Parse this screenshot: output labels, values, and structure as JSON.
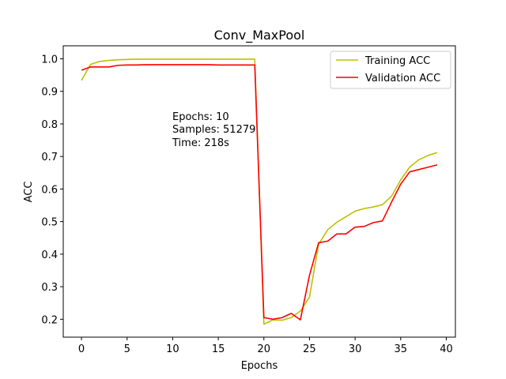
{
  "chart_data": {
    "type": "line",
    "title": "Conv_MaxPool",
    "xlabel": "Epochs",
    "ylabel": "ACC",
    "xlim": [
      -2,
      41
    ],
    "ylim": [
      0.145,
      1.04
    ],
    "xticks": [
      0,
      5,
      10,
      15,
      20,
      25,
      30,
      35,
      40
    ],
    "yticks": [
      0.2,
      0.3,
      0.4,
      0.5,
      0.6,
      0.7,
      0.8,
      0.9,
      1.0
    ],
    "ytick_labels": [
      "0.2",
      "0.3",
      "0.4",
      "0.5",
      "0.6",
      "0.7",
      "0.8",
      "0.9",
      "1.0"
    ],
    "grid": false,
    "legend_position": "top-right",
    "x": [
      0,
      1,
      2,
      3,
      4,
      5,
      6,
      7,
      8,
      9,
      10,
      11,
      12,
      13,
      14,
      15,
      16,
      17,
      18,
      19,
      20,
      21,
      22,
      23,
      24,
      25,
      26,
      27,
      28,
      29,
      30,
      31,
      32,
      33,
      34,
      35,
      36,
      37,
      38,
      39
    ],
    "series": [
      {
        "name": "Training ACC",
        "color": "#bfbf00",
        "values": [
          0.934,
          0.983,
          0.992,
          0.995,
          0.997,
          0.998,
          0.999,
          0.999,
          0.999,
          0.999,
          0.999,
          0.999,
          0.999,
          0.999,
          0.999,
          0.999,
          0.999,
          0.999,
          0.999,
          0.999,
          0.185,
          0.198,
          0.197,
          0.205,
          0.225,
          0.268,
          0.43,
          0.475,
          0.498,
          0.515,
          0.532,
          0.54,
          0.545,
          0.552,
          0.578,
          0.628,
          0.668,
          0.69,
          0.703,
          0.712
        ]
      },
      {
        "name": "Validation ACC",
        "color": "#ff0000",
        "values": [
          0.965,
          0.975,
          0.975,
          0.975,
          0.98,
          0.981,
          0.981,
          0.982,
          0.982,
          0.982,
          0.982,
          0.982,
          0.982,
          0.982,
          0.982,
          0.981,
          0.981,
          0.981,
          0.981,
          0.981,
          0.205,
          0.2,
          0.205,
          0.218,
          0.198,
          0.335,
          0.435,
          0.44,
          0.462,
          0.462,
          0.483,
          0.485,
          0.497,
          0.502,
          0.56,
          0.615,
          0.653,
          0.66,
          0.667,
          0.674
        ]
      }
    ],
    "annotation_lines": [
      "Epochs: 10",
      "Samples: 51279",
      "Time: 218s"
    ]
  }
}
